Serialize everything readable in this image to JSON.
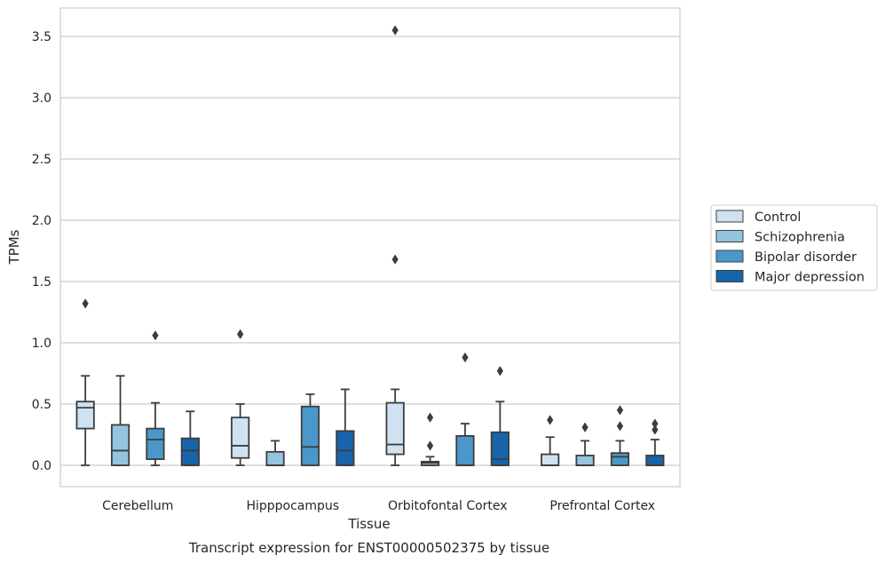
{
  "chart_data": {
    "type": "box",
    "title": "Transcript expression for ENST00000502375 by tissue",
    "xlabel": "Tissue",
    "ylabel": "TPMs",
    "categories": [
      "Cerebellum",
      "Hipppocampus",
      "Orbitofontal Cortex",
      "Prefrontal Cortex"
    ],
    "ylim": [
      -0.17,
      3.73
    ],
    "yticks": [
      "0.0",
      "0.5",
      "1.0",
      "1.5",
      "2.0",
      "2.5",
      "3.0",
      "3.5"
    ],
    "ytick_values": [
      0,
      0.5,
      1.0,
      1.5,
      2.0,
      2.5,
      3.0,
      3.5
    ],
    "grid": "horizontal",
    "legend_position": "right",
    "series": [
      {
        "name": "Control",
        "color": "#d0e1f2",
        "boxes": [
          {
            "whislo": 0.0,
            "q1": 0.3,
            "med": 0.47,
            "q3": 0.52,
            "whishi": 0.73,
            "fliers": [
              1.32
            ]
          },
          {
            "whislo": 0.0,
            "q1": 0.06,
            "med": 0.16,
            "q3": 0.39,
            "whishi": 0.5,
            "fliers": [
              1.07
            ]
          },
          {
            "whislo": 0.0,
            "q1": 0.09,
            "med": 0.17,
            "q3": 0.51,
            "whishi": 0.62,
            "fliers": [
              1.68,
              3.55
            ]
          },
          {
            "whislo": 0.0,
            "q1": 0.0,
            "med": 0.0,
            "q3": 0.09,
            "whishi": 0.23,
            "fliers": [
              0.37
            ]
          }
        ]
      },
      {
        "name": "Schizophrenia",
        "color": "#94c4df",
        "boxes": [
          {
            "whislo": 0.0,
            "q1": 0.0,
            "med": 0.12,
            "q3": 0.33,
            "whishi": 0.73,
            "fliers": []
          },
          {
            "whislo": 0.0,
            "q1": 0.0,
            "med": 0.0,
            "q3": 0.11,
            "whishi": 0.2,
            "fliers": []
          },
          {
            "whislo": 0.0,
            "q1": 0.0,
            "med": 0.02,
            "q3": 0.03,
            "whishi": 0.07,
            "fliers": [
              0.16,
              0.39
            ]
          },
          {
            "whislo": 0.0,
            "q1": 0.0,
            "med": 0.0,
            "q3": 0.08,
            "whishi": 0.2,
            "fliers": [
              0.31
            ]
          }
        ]
      },
      {
        "name": "Bipolar disorder",
        "color": "#4a98c9",
        "boxes": [
          {
            "whislo": 0.0,
            "q1": 0.05,
            "med": 0.21,
            "q3": 0.3,
            "whishi": 0.51,
            "fliers": [
              1.06
            ]
          },
          {
            "whislo": 0.0,
            "q1": 0.0,
            "med": 0.15,
            "q3": 0.48,
            "whishi": 0.58,
            "fliers": []
          },
          {
            "whislo": 0.0,
            "q1": 0.0,
            "med": 0.0,
            "q3": 0.24,
            "whishi": 0.34,
            "fliers": [
              0.88
            ]
          },
          {
            "whislo": 0.0,
            "q1": 0.0,
            "med": 0.07,
            "q3": 0.1,
            "whishi": 0.2,
            "fliers": [
              0.32,
              0.45
            ]
          }
        ]
      },
      {
        "name": "Major depression",
        "color": "#1764ab",
        "boxes": [
          {
            "whislo": 0.0,
            "q1": 0.0,
            "med": 0.12,
            "q3": 0.22,
            "whishi": 0.44,
            "fliers": []
          },
          {
            "whislo": 0.0,
            "q1": 0.0,
            "med": 0.12,
            "q3": 0.28,
            "whishi": 0.62,
            "fliers": []
          },
          {
            "whislo": 0.0,
            "q1": 0.0,
            "med": 0.05,
            "q3": 0.27,
            "whishi": 0.52,
            "fliers": [
              0.77
            ]
          },
          {
            "whislo": 0.0,
            "q1": 0.0,
            "med": 0.0,
            "q3": 0.08,
            "whishi": 0.21,
            "fliers": [
              0.29,
              0.34
            ]
          }
        ]
      }
    ]
  }
}
